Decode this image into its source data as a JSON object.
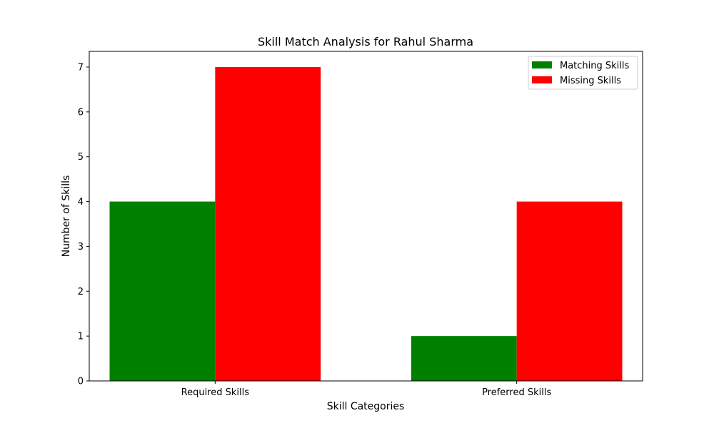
{
  "chart_data": {
    "type": "bar",
    "title": "Skill Match Analysis for Rahul Sharma",
    "xlabel": "Skill Categories",
    "ylabel": "Number of Skills",
    "categories": [
      "Required Skills",
      "Preferred Skills"
    ],
    "series": [
      {
        "name": "Matching Skills",
        "values": [
          4,
          1
        ],
        "color": "#008000"
      },
      {
        "name": "Missing Skills",
        "values": [
          7,
          4
        ],
        "color": "#ff0000"
      }
    ],
    "ylim": [
      0,
      7.35
    ],
    "yticks": [
      0,
      1,
      2,
      3,
      4,
      5,
      6,
      7
    ],
    "grid": false,
    "legend_position": "top-right"
  }
}
